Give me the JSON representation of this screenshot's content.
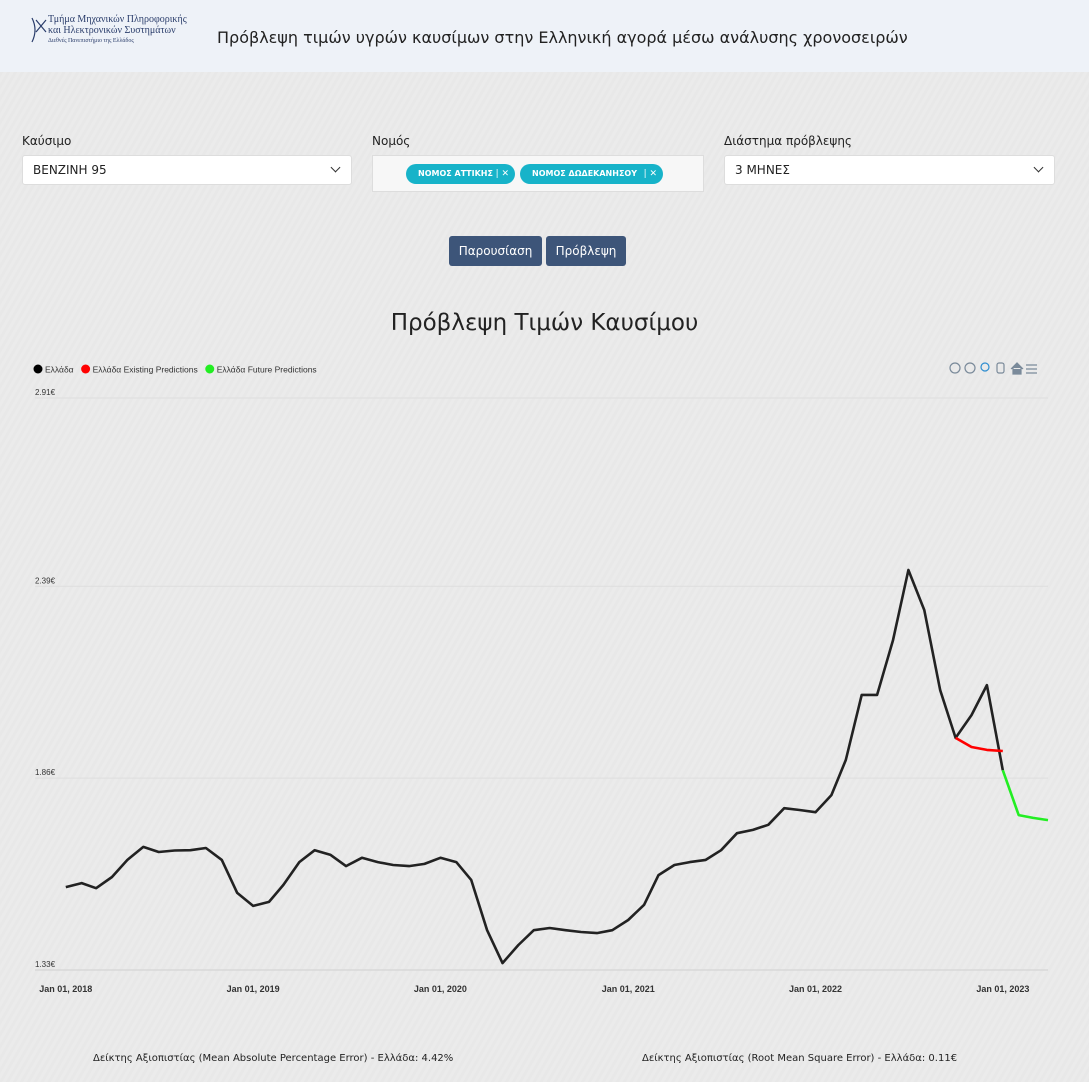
{
  "header": {
    "logo_lines": [
      "Τμήμα Μηχανικών Πληροφορικής",
      "και Ηλεκτρονικών Συστημάτων",
      "Διεθνές Πανεπιστήμιο της Ελλάδος"
    ],
    "title": "Πρόβλεψη τιμών υγρών καυσίμων στην Ελληνική αγορά μέσω ανάλυσης χρονοσειρών"
  },
  "form": {
    "fuel": {
      "label": "Καύσιμο",
      "value": "ΒΕΝΖΙΝΗ 95"
    },
    "prefecture": {
      "label": "Νομός",
      "tags": [
        "ΝΟΜΟΣ ΑΤΤΙΚΗΣ",
        "ΝΟΜΟΣ ΔΩΔΕΚΑΝΗΣΟΥ"
      ]
    },
    "horizon": {
      "label": "Διάστημα πρόβλεψης",
      "value": "3 ΜΗΝΕΣ"
    }
  },
  "buttons": [
    "Παρουσίαση",
    "Πρόβλεψη"
  ],
  "chart_data": {
    "type": "line",
    "title": "Πρόβλεψη Τιμών Καυσίμου",
    "series": [
      {
        "name": "Ελλάδα",
        "color": "#222222",
        "x": [
          "2018-01-01",
          "2018-02-01",
          "2018-03-01",
          "2018-04-01",
          "2018-05-01",
          "2018-06-01",
          "2018-07-01",
          "2018-08-01",
          "2018-09-01",
          "2018-10-01",
          "2018-11-01",
          "2018-12-01",
          "2019-01-01",
          "2019-02-01",
          "2019-03-01",
          "2019-04-01",
          "2019-05-01",
          "2019-06-01",
          "2019-07-01",
          "2019-08-01",
          "2019-09-01",
          "2019-10-01",
          "2019-11-01",
          "2019-12-01",
          "2020-01-01",
          "2020-02-01",
          "2020-03-01",
          "2020-04-01",
          "2020-05-01",
          "2020-06-01",
          "2020-07-01",
          "2020-08-01",
          "2020-09-01",
          "2020-10-01",
          "2020-11-01",
          "2020-12-01",
          "2021-01-01",
          "2021-02-01",
          "2021-03-01",
          "2021-04-01",
          "2021-05-01",
          "2021-06-01",
          "2021-07-01",
          "2021-08-01",
          "2021-09-01",
          "2021-10-01",
          "2021-11-01",
          "2021-12-01",
          "2022-01-01",
          "2022-02-01",
          "2022-03-01",
          "2022-04-01",
          "2022-05-01",
          "2022-06-01",
          "2022-07-01",
          "2022-08-01",
          "2022-09-01",
          "2022-10-01",
          "2022-11-01",
          "2022-12-01",
          "2023-01-01"
        ],
        "values": [
          1.559,
          1.57,
          1.556,
          1.587,
          1.634,
          1.67,
          1.656,
          1.66,
          1.661,
          1.667,
          1.634,
          1.543,
          1.507,
          1.518,
          1.565,
          1.628,
          1.661,
          1.648,
          1.617,
          1.64,
          1.628,
          1.62,
          1.617,
          1.623,
          1.64,
          1.628,
          1.579,
          1.44,
          1.349,
          1.399,
          1.44,
          1.446,
          1.44,
          1.435,
          1.432,
          1.44,
          1.468,
          1.51,
          1.592,
          1.62,
          1.628,
          1.634,
          1.661,
          1.708,
          1.717,
          1.731,
          1.777,
          1.772,
          1.766,
          1.813,
          1.91,
          2.09,
          2.09,
          2.241,
          2.435,
          2.324,
          2.103,
          1.971,
          2.034,
          2.117,
          1.882
        ]
      },
      {
        "name": "Ελλάδα Existing Predictions",
        "color": "#ff0000",
        "x": [
          "2022-10-01",
          "2022-11-01",
          "2022-12-01",
          "2023-01-01"
        ],
        "values": [
          1.971,
          1.946,
          1.938,
          1.935
        ]
      },
      {
        "name": "Ελλάδα Future Predictions",
        "color": "#22ee22",
        "x": [
          "2023-01-01",
          "2023-02-01",
          "2023-03-01",
          "2023-03-30"
        ],
        "values": [
          1.882,
          1.758,
          1.75,
          1.744
        ]
      }
    ],
    "xlim": [
      "2017-11-02",
      "2023-03-30"
    ],
    "xticks": [
      {
        "value": "2018-01-01",
        "label": "Jan 01, 2018"
      },
      {
        "value": "2019-01-01",
        "label": "Jan 01, 2019"
      },
      {
        "value": "2020-01-01",
        "label": "Jan 01, 2020"
      },
      {
        "value": "2021-01-01",
        "label": "Jan 01, 2021"
      },
      {
        "value": "2022-01-01",
        "label": "Jan 01, 2022"
      },
      {
        "value": "2023-01-01",
        "label": "Jan 01, 2023"
      }
    ],
    "ylim": [
      1.33,
      2.91
    ],
    "yticks": [
      {
        "value": 2.91,
        "label": "2.91€"
      },
      {
        "value": 2.39,
        "label": "2.39€"
      },
      {
        "value": 1.86,
        "label": "1.86€"
      },
      {
        "value": 1.33,
        "label": "1.33€"
      }
    ],
    "grid": true
  },
  "metrics": [
    "Δείκτης Αξιοπιστίας (Mean Absolute Percentage Error) - Ελλάδα: 4.42%",
    "Δείκτης Αξιοπιστίας (Root Mean Square Error) - Ελλάδα: 0.11€"
  ]
}
